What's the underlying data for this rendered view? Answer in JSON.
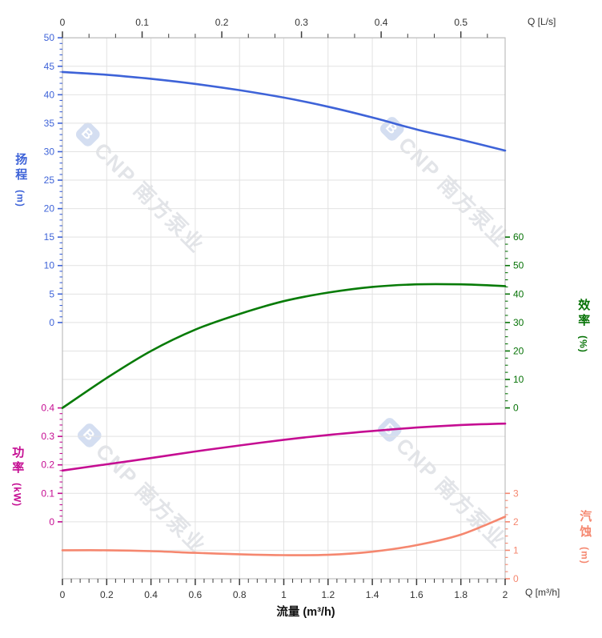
{
  "page": {
    "background": "#FFFFFF"
  },
  "watermark": {
    "logo_letter": "B",
    "text": "CNP 南方泵业"
  },
  "chart_data": {
    "type": "line",
    "title_bottom": "流量 (m³/h)",
    "grid": {
      "on": true,
      "color": "#E2E2E2",
      "frame_color": "#BDBDBD"
    },
    "x_axis_bottom": {
      "corner_label": "Q [m³/h]",
      "min": 0,
      "max": 2,
      "tick_values": [
        0,
        0.2,
        0.4,
        0.6,
        0.8,
        1,
        1.2,
        1.4,
        1.6,
        1.8,
        2
      ],
      "tick_labels": [
        "0",
        "0.2",
        "0.4",
        "0.6",
        "0.8",
        "1",
        "1.2",
        "1.4",
        "1.6",
        "1.8",
        "2"
      ],
      "minor_divisions": 5,
      "tick_color": "#3C3C3C",
      "label_color": "#333333"
    },
    "x_axis_top": {
      "corner_label": "Q [L/s]",
      "min": 0,
      "max": 0.5556,
      "tick_values": [
        0,
        0.1,
        0.2,
        0.3,
        0.4,
        0.5
      ],
      "tick_labels": [
        "0",
        "0.1",
        "0.2",
        "0.3",
        "0.4",
        "0.5"
      ],
      "minor_divisions": 3,
      "tick_color": "#3C3C3C",
      "label_color": "#333333"
    },
    "y_axes": {
      "head": {
        "title": "扬程",
        "unit": "(m)",
        "side": "left",
        "color": "#3E63D8",
        "min": 0,
        "max": 50,
        "tick_values": [
          0,
          5,
          10,
          15,
          20,
          25,
          30,
          35,
          40,
          45,
          50
        ],
        "tick_labels": [
          "0",
          "5",
          "10",
          "15",
          "20",
          "25",
          "30",
          "35",
          "40",
          "45",
          "50"
        ],
        "minor_divisions": 5
      },
      "eff": {
        "title": "效率",
        "unit": "(%)",
        "side": "right",
        "color": "#077307",
        "min": 0,
        "max": 60,
        "tick_values": [
          0,
          10,
          20,
          30,
          40,
          50,
          60
        ],
        "tick_labels": [
          "0",
          "10",
          "20",
          "30",
          "40",
          "50",
          "60"
        ],
        "minor_divisions": 4
      },
      "power": {
        "title": "功率",
        "unit": "(kW)",
        "side": "left",
        "color": "#C50D92",
        "min": 0,
        "max": 0.4,
        "tick_values": [
          0,
          0.1,
          0.2,
          0.3,
          0.4
        ],
        "tick_labels": [
          "0",
          "0.1",
          "0.2",
          "0.3",
          "0.4"
        ],
        "minor_divisions": 5
      },
      "npsh": {
        "title": "汽蚀",
        "unit": "(m)",
        "side": "right",
        "color": "#F5876F",
        "min": 0,
        "max": 3,
        "tick_values": [
          0,
          1,
          2,
          3
        ],
        "tick_labels": [
          "0",
          "1",
          "2",
          "3"
        ],
        "minor_divisions": 4
      }
    },
    "x": [
      0,
      0.2,
      0.4,
      0.6,
      0.8,
      1,
      1.2,
      1.4,
      1.6,
      1.8,
      2
    ],
    "series": [
      {
        "name": "head",
        "axis": "head",
        "color": "#3E63D8",
        "values": [
          44.0,
          43.5,
          42.8,
          41.9,
          40.8,
          39.5,
          37.9,
          36.0,
          33.9,
          32.1,
          30.2
        ]
      },
      {
        "name": "efficiency",
        "axis": "eff",
        "color": "#077B07",
        "values": [
          0,
          10.5,
          20.0,
          27.5,
          33.0,
          37.5,
          40.5,
          42.5,
          43.4,
          43.4,
          42.8
        ]
      },
      {
        "name": "power",
        "axis": "power",
        "color": "#C50D92",
        "values": [
          0.18,
          0.202,
          0.224,
          0.247,
          0.268,
          0.288,
          0.305,
          0.319,
          0.331,
          0.34,
          0.345
        ]
      },
      {
        "name": "npsh",
        "axis": "npsh",
        "color": "#F5876F",
        "values": [
          1.0,
          1.0,
          0.97,
          0.91,
          0.86,
          0.83,
          0.84,
          0.95,
          1.18,
          1.55,
          2.18
        ]
      }
    ]
  }
}
